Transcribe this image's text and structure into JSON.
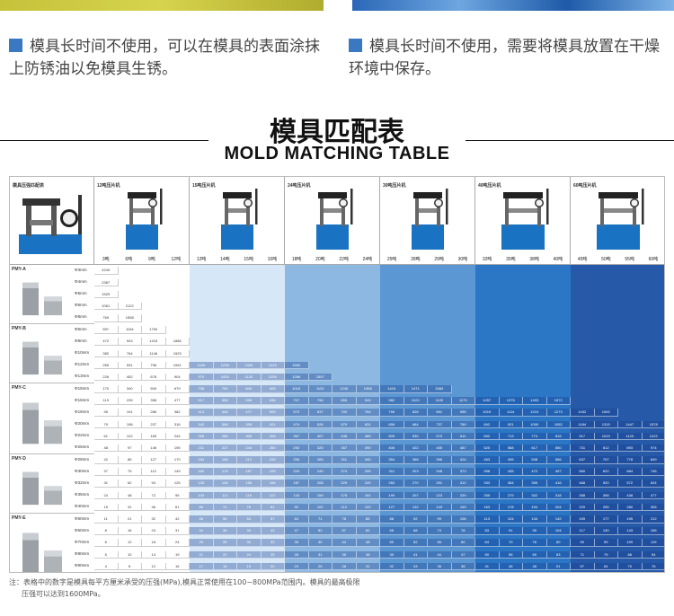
{
  "tips": [
    {
      "text": "模具长时间不使用，可以在模具的表面涂抹上防锈油以免模具生锈。"
    },
    {
      "text": "模具长时间不使用，需要将模具放置在干燥环境中保存。"
    }
  ],
  "title_cn": "模具匹配表",
  "title_en": "MOLD MATCHING TABLE",
  "table": {
    "corner_label": "模具压强匹配表",
    "machines": [
      {
        "name": "12吨压片机",
        "tons": [
          "3吨",
          "6吨",
          "9吨",
          "12吨"
        ]
      },
      {
        "name": "15吨压片机",
        "tons": [
          "12吨",
          "14吨",
          "15吨",
          "16吨"
        ]
      },
      {
        "name": "24吨压片机",
        "tons": [
          "18吨",
          "20吨",
          "22吨",
          "24吨"
        ]
      },
      {
        "name": "30吨压片机",
        "tons": [
          "25吨",
          "28吨",
          "29吨",
          "30吨"
        ]
      },
      {
        "name": "40吨压片机",
        "tons": [
          "32吨",
          "35吨",
          "38吨",
          "40吨"
        ]
      },
      {
        "name": "60吨压片机",
        "tons": [
          "45吨",
          "50吨",
          "55吨",
          "60吨"
        ]
      }
    ],
    "groups": [
      {
        "name": "PMY-A",
        "sizes": [
          "Φ3mm",
          "Φ4mm",
          "Φ5mm",
          "Φ6mm",
          "Φ8mm"
        ]
      },
      {
        "name": "PMY-B",
        "sizes": [
          "Φ6mm",
          "Φ8mm",
          "Φ10mm",
          "Φ12mm",
          "Φ13mm"
        ]
      },
      {
        "name": "PMY-C",
        "sizes": [
          "Φ15mm",
          "Φ16mm",
          "Φ18mm",
          "Φ20mm",
          "Φ22mm",
          "Φ25mm"
        ]
      },
      {
        "name": "PMY-D",
        "sizes": [
          "Φ28mm",
          "Φ30mm",
          "Φ32mm",
          "Φ35mm",
          "Φ40mm"
        ]
      },
      {
        "name": "PMY-E",
        "sizes": [
          "Φ50mm",
          "Φ60mm",
          "Φ70mm",
          "Φ80mm",
          "Φ90mm",
          "Φ100mm"
        ]
      }
    ],
    "rows": [
      [
        "4249"
      ],
      [
        "2387"
      ],
      [
        "1529"
      ],
      [
        "1061",
        "2122"
      ],
      [
        "769",
        "1558"
      ],
      [
        "597",
        "1194",
        "1790"
      ],
      [
        "472",
        "943",
        "1415",
        "1886"
      ],
      [
        "382",
        "764",
        "1146",
        "1529"
      ],
      [
        "265",
        "531",
        "796",
        "1061",
        "1169",
        "1238",
        "1326",
        "1415",
        "1592"
      ],
      [
        "226",
        "452",
        "678",
        "904",
        "970",
        "1055",
        "1130",
        "1205",
        "1356",
        "1507"
      ],
      [
        "170",
        "340",
        "509",
        "679",
        "736",
        "792",
        "849",
        "905",
        "1019",
        "1132",
        "1245",
        "1358",
        "1415",
        "1471",
        "1584"
      ],
      [
        "119",
        "239",
        "358",
        "477",
        "517",
        "556",
        "596",
        "636",
        "707",
        "796",
        "855",
        "943",
        "982",
        "1022",
        "1100",
        "1179",
        "1257",
        "1375",
        "1493",
        "1572"
      ],
      [
        "95",
        "191",
        "286",
        "382",
        "414",
        "446",
        "477",
        "509",
        "573",
        "637",
        "700",
        "764",
        "796",
        "828",
        "891",
        "955",
        "1019",
        "1114",
        "1210",
        "1273",
        "1432",
        "1592"
      ],
      [
        "79",
        "158",
        "237",
        "316",
        "342",
        "368",
        "395",
        "421",
        "474",
        "526",
        "579",
        "631",
        "658",
        "684",
        "737",
        "789",
        "842",
        "921",
        "1000",
        "1052",
        "1184",
        "1315",
        "1447",
        "1578"
      ],
      [
        "61",
        "122",
        "183",
        "244",
        "265",
        "285",
        "305",
        "326",
        "367",
        "407",
        "448",
        "489",
        "509",
        "530",
        "570",
        "611",
        "652",
        "713",
        "774",
        "815",
        "917",
        "1019",
        "1120",
        "1222"
      ],
      [
        "48",
        "97",
        "146",
        "195",
        "211",
        "227",
        "244",
        "260",
        "292",
        "325",
        "357",
        "390",
        "406",
        "422",
        "455",
        "487",
        "520",
        "568",
        "617",
        "650",
        "731",
        "812",
        "893",
        "974"
      ],
      [
        "42",
        "85",
        "127",
        "170",
        "184",
        "198",
        "212",
        "226",
        "255",
        "283",
        "311",
        "340",
        "354",
        "368",
        "396",
        "424",
        "453",
        "495",
        "538",
        "566",
        "637",
        "707",
        "778",
        "849"
      ],
      [
        "37",
        "75",
        "112",
        "149",
        "162",
        "174",
        "187",
        "199",
        "224",
        "249",
        "274",
        "299",
        "311",
        "323",
        "348",
        "373",
        "398",
        "435",
        "472",
        "497",
        "560",
        "622",
        "684",
        "746"
      ],
      [
        "31",
        "62",
        "94",
        "125",
        "135",
        "146",
        "156",
        "166",
        "187",
        "208",
        "229",
        "249",
        "260",
        "270",
        "291",
        "312",
        "333",
        "364",
        "395",
        "416",
        "468",
        "520",
        "572",
        "624"
      ],
      [
        "24",
        "48",
        "72",
        "95",
        "103",
        "111",
        "119",
        "127",
        "143",
        "159",
        "175",
        "191",
        "199",
        "207",
        "223",
        "239",
        "255",
        "279",
        "302",
        "318",
        "358",
        "398",
        "438",
        "477"
      ],
      [
        "15",
        "31",
        "46",
        "61",
        "66",
        "71",
        "76",
        "81",
        "92",
        "102",
        "112",
        "122",
        "127",
        "132",
        "143",
        "153",
        "163",
        "178",
        "194",
        "204",
        "229",
        "255",
        "280",
        "306"
      ],
      [
        "11",
        "21",
        "32",
        "42",
        "46",
        "50",
        "53",
        "57",
        "64",
        "71",
        "78",
        "85",
        "88",
        "92",
        "99",
        "106",
        "113",
        "124",
        "134",
        "142",
        "159",
        "177",
        "195",
        "212"
      ],
      [
        "8",
        "16",
        "23",
        "31",
        "34",
        "36",
        "39",
        "42",
        "47",
        "52",
        "57",
        "62",
        "65",
        "68",
        "73",
        "78",
        "83",
        "91",
        "99",
        "104",
        "117",
        "130",
        "143",
        "156"
      ],
      [
        "6",
        "12",
        "18",
        "24",
        "26",
        "28",
        "30",
        "32",
        "35",
        "40",
        "44",
        "48",
        "50",
        "52",
        "56",
        "60",
        "64",
        "70",
        "76",
        "80",
        "90",
        "99",
        "109",
        "119"
      ],
      [
        "5",
        "10",
        "14",
        "19",
        "21",
        "22",
        "24",
        "25",
        "28",
        "31",
        "35",
        "38",
        "39",
        "41",
        "44",
        "47",
        "50",
        "55",
        "60",
        "63",
        "71",
        "79",
        "86",
        "94"
      ],
      [
        "4",
        "8",
        "12",
        "16",
        "17",
        "18",
        "19",
        "20",
        "23",
        "25",
        "28",
        "31",
        "32",
        "33",
        "36",
        "38",
        "41",
        "45",
        "48",
        "51",
        "57",
        "64",
        "70",
        "76"
      ]
    ]
  },
  "colors": {
    "band1": "#ffffff",
    "band2": "#d6e7f7",
    "band3": "#8cb8e2",
    "band4": "#5b97d3",
    "band5": "#2b77c6",
    "band6": "#265aa8",
    "accent": "#3a78c2"
  },
  "note_line1": "注：表格中的数字是模具每平方厘米承受的压强(MPa),模具正常使用在100~800MPa范围内。模具的最高极限",
  "note_line2": "压强可以达到1600MPa。"
}
